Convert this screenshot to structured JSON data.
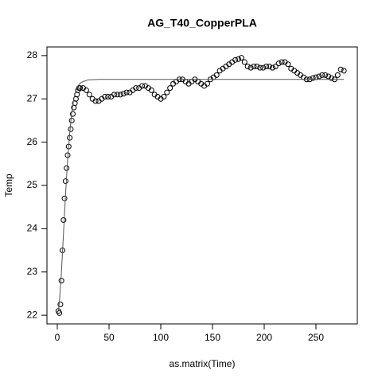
{
  "chart_data": {
    "type": "scatter",
    "title": "AG_T40_CopperPLA",
    "xlabel": "as.matrix(Time)",
    "ylabel": "Temp",
    "xlim": [
      -10,
      290
    ],
    "ylim": [
      21.8,
      28.2
    ],
    "xticks": [
      0,
      50,
      100,
      150,
      200,
      250
    ],
    "yticks": [
      22,
      23,
      24,
      25,
      26,
      27,
      28
    ],
    "color": "#000000",
    "series": [
      {
        "type": "scatter",
        "color": "#000000",
        "x": [
          1,
          2,
          3,
          4,
          5,
          6,
          7,
          8,
          9,
          10,
          11,
          12,
          13,
          14,
          15,
          16,
          17,
          18,
          19,
          20,
          21,
          22,
          25,
          28,
          31,
          34,
          37,
          40,
          43,
          46,
          49,
          52,
          55,
          58,
          61,
          64,
          67,
          70,
          73,
          76,
          79,
          82,
          85,
          88,
          91,
          94,
          97,
          100,
          103,
          106,
          109,
          112,
          115,
          118,
          121,
          124,
          127,
          130,
          133,
          136,
          139,
          142,
          145,
          148,
          151,
          154,
          157,
          160,
          163,
          166,
          169,
          172,
          175,
          178,
          181,
          184,
          187,
          190,
          193,
          196,
          199,
          202,
          205,
          208,
          211,
          214,
          217,
          220,
          223,
          226,
          229,
          232,
          235,
          238,
          241,
          244,
          247,
          250,
          253,
          256,
          259,
          262,
          265,
          268,
          271,
          274,
          277
        ],
        "values": [
          22.1,
          22.05,
          22.25,
          22.8,
          23.5,
          24.2,
          24.7,
          25.1,
          25.4,
          25.7,
          25.9,
          26.1,
          26.3,
          26.5,
          26.65,
          26.8,
          26.9,
          27.0,
          27.1,
          27.2,
          27.25,
          27.25,
          27.25,
          27.2,
          27.1,
          27.0,
          26.95,
          26.95,
          27.0,
          27.05,
          27.05,
          27.05,
          27.1,
          27.1,
          27.1,
          27.12,
          27.15,
          27.15,
          27.2,
          27.25,
          27.25,
          27.3,
          27.3,
          27.25,
          27.2,
          27.1,
          27.05,
          27.0,
          27.05,
          27.15,
          27.25,
          27.35,
          27.4,
          27.45,
          27.45,
          27.4,
          27.35,
          27.4,
          27.45,
          27.4,
          27.35,
          27.3,
          27.35,
          27.45,
          27.5,
          27.55,
          27.65,
          27.7,
          27.75,
          27.8,
          27.85,
          27.9,
          27.92,
          27.95,
          27.85,
          27.75,
          27.72,
          27.75,
          27.75,
          27.72,
          27.72,
          27.75,
          27.75,
          27.72,
          27.75,
          27.82,
          27.85,
          27.85,
          27.8,
          27.7,
          27.65,
          27.6,
          27.55,
          27.5,
          27.45,
          27.45,
          27.48,
          27.5,
          27.52,
          27.55,
          27.55,
          27.52,
          27.48,
          27.45,
          27.55,
          27.68,
          27.65
        ]
      },
      {
        "type": "line",
        "color": "#555555",
        "x": [
          1,
          2,
          4,
          6,
          8,
          10,
          12,
          14,
          16,
          18,
          20,
          22,
          25,
          30,
          40,
          60,
          277
        ],
        "values": [
          22.1,
          22.3,
          23.0,
          23.9,
          24.8,
          25.6,
          26.2,
          26.7,
          27.0,
          27.2,
          27.3,
          27.36,
          27.4,
          27.44,
          27.45,
          27.45,
          27.45
        ]
      }
    ]
  }
}
